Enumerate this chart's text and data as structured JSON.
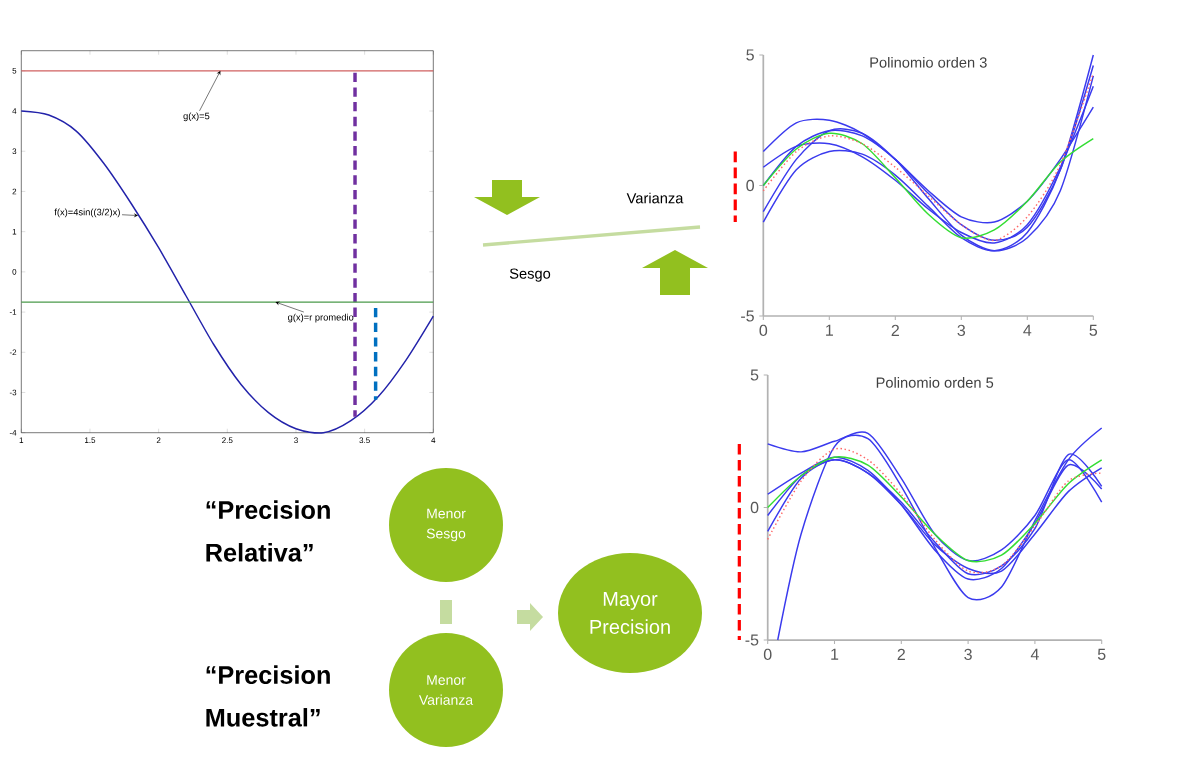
{
  "chart_data": [
    {
      "type": "line",
      "x": [
        1.0,
        1.2,
        1.4,
        1.6,
        1.8,
        2.0,
        2.2,
        2.4,
        2.6,
        2.8,
        3.0,
        3.2,
        3.4,
        3.6,
        3.8,
        4.0
      ],
      "xlim": [
        1,
        4
      ],
      "ylim": [
        -4,
        5.5
      ],
      "xticks": [
        1,
        1.5,
        2,
        2.5,
        3,
        3.5,
        4
      ],
      "yticks": [
        -4,
        -3,
        -2,
        -1,
        0,
        1,
        2,
        3,
        4,
        5
      ],
      "series": [
        {
          "color": "#2222aa",
          "values": [
            4.0,
            3.9,
            3.5,
            2.7,
            1.7,
            0.6,
            -0.6,
            -1.8,
            -2.8,
            -3.5,
            -3.9,
            -4.0,
            -3.7,
            -3.1,
            -2.2,
            -1.1
          ]
        },
        {
          "color": "#7030a0",
          "x": [
            3.43,
            3.43
          ],
          "values": [
            4.95,
            -3.6
          ],
          "line_style": "dashed"
        },
        {
          "color": "#0070c0",
          "x": [
            3.58,
            3.58
          ],
          "values": [
            -0.9,
            -3.18
          ],
          "line_style": "dashed"
        }
      ],
      "ref_lines": [
        {
          "axis": "y",
          "value": 5,
          "color": "#d06060"
        },
        {
          "axis": "y",
          "value": -0.75,
          "color": "#4a9a4a"
        }
      ],
      "annotations": [
        {
          "text": "g(x)=5",
          "x": 2.45,
          "y": 5
        },
        {
          "text": "f(x)=4sin((3/2)x)",
          "x": 1.85,
          "y": 1.4
        },
        {
          "text": "g(x)=r promedio",
          "x": 2.85,
          "y": -0.75
        }
      ]
    },
    {
      "type": "line",
      "title": "Polinomio orden 3",
      "x": [
        0,
        0.5,
        1,
        1.5,
        2,
        2.5,
        3,
        3.5,
        4,
        4.5,
        5
      ],
      "xlim": [
        0,
        5
      ],
      "ylim": [
        -5,
        5
      ],
      "xticks": [
        0,
        1,
        2,
        3,
        4,
        5
      ],
      "yticks": [
        -5,
        0,
        5
      ],
      "series": [
        {
          "color": "#3a3aee",
          "values": [
            1.3,
            2.4,
            2.5,
            2.0,
            1.0,
            -0.2,
            -1.2,
            -1.4,
            -0.6,
            1.0,
            3.0
          ]
        },
        {
          "color": "#3a3aee",
          "values": [
            0.7,
            1.5,
            1.6,
            1.1,
            0.2,
            -0.9,
            -1.8,
            -2.2,
            -1.5,
            0.7,
            3.8
          ]
        },
        {
          "color": "#3a3aee",
          "values": [
            0,
            1.5,
            2.1,
            1.9,
            1.0,
            -0.3,
            -1.5,
            -2.1,
            -1.6,
            0.6,
            4.6
          ]
        },
        {
          "color": "#3a3aee",
          "values": [
            -1.0,
            1.0,
            2.1,
            2.0,
            1.0,
            -0.5,
            -1.9,
            -2.5,
            -2.0,
            -0.2,
            4.2
          ]
        },
        {
          "color": "#3a3aee",
          "values": [
            -1.4,
            0.6,
            1.3,
            1.2,
            0.4,
            -0.8,
            -2.0,
            -2.5,
            -1.8,
            0.6,
            5.0
          ]
        },
        {
          "color": "#33dd33",
          "values": [
            0,
            1.4,
            2.0,
            1.6,
            0.3,
            -1.1,
            -2.0,
            -1.7,
            -0.6,
            0.9,
            1.8
          ]
        },
        {
          "color": "#ff6666",
          "values": [
            -0.2,
            1.3,
            1.9,
            1.6,
            0.7,
            -0.4,
            -1.5,
            -2.1,
            -1.2,
            0.8,
            4.3
          ],
          "line_style": "dotted"
        }
      ]
    },
    {
      "type": "line",
      "title": "Polinomio orden 5",
      "x": [
        0,
        0.5,
        1,
        1.5,
        2,
        2.5,
        3,
        3.5,
        4,
        4.5,
        5
      ],
      "xlim": [
        0,
        5
      ],
      "ylim": [
        -5,
        5
      ],
      "xticks": [
        0,
        1,
        2,
        3,
        4,
        5
      ],
      "yticks": [
        -5,
        0,
        5
      ],
      "series": [
        {
          "color": "#3a3aee",
          "values": [
            2.4,
            2.1,
            2.5,
            2.8,
            1.1,
            -1.0,
            -2.0,
            -1.6,
            -0.3,
            1.8,
            0.2
          ]
        },
        {
          "color": "#3a3aee",
          "x": [
            0.15,
            0.5,
            1,
            1.5,
            2,
            2.5,
            3,
            3.5,
            4,
            4.5,
            5
          ],
          "values": [
            -5,
            -1.0,
            2.3,
            2.6,
            0.8,
            -1.5,
            -3.4,
            -3.0,
            -0.5,
            1.8,
            3.0
          ]
        },
        {
          "color": "#3a3aee",
          "values": [
            0.5,
            1.3,
            1.9,
            1.4,
            0.1,
            -1.6,
            -2.7,
            -2.3,
            -0.6,
            1.6,
            0.7
          ]
        },
        {
          "color": "#3a3aee",
          "values": [
            -0.3,
            1.2,
            1.8,
            1.3,
            0.2,
            -1.3,
            -2.5,
            -2.2,
            -0.8,
            2.0,
            0.8
          ]
        },
        {
          "color": "#3a3aee",
          "values": [
            -0.9,
            1.1,
            1.8,
            1.3,
            0.1,
            -1.4,
            -2.3,
            -2.4,
            -1.0,
            0.6,
            1.5
          ]
        },
        {
          "color": "#33dd33",
          "values": [
            0,
            1.2,
            1.9,
            1.6,
            0.4,
            -1.0,
            -2.0,
            -1.8,
            -0.6,
            0.9,
            1.8
          ]
        },
        {
          "color": "#ff6666",
          "values": [
            -1.2,
            1.0,
            2.2,
            1.8,
            0.5,
            -1.2,
            -2.4,
            -2.2,
            -0.7,
            1.0,
            1.3
          ],
          "line_style": "dotted"
        }
      ]
    },
    {
      "type": "other",
      "annotations": [
        "Varianza",
        "Sesgo",
        "“Precision Relativa”",
        "Menor Sesgo",
        "Menor Varianza",
        "Mayor Precision",
        "“Precision Muestral”"
      ]
    }
  ]
}
